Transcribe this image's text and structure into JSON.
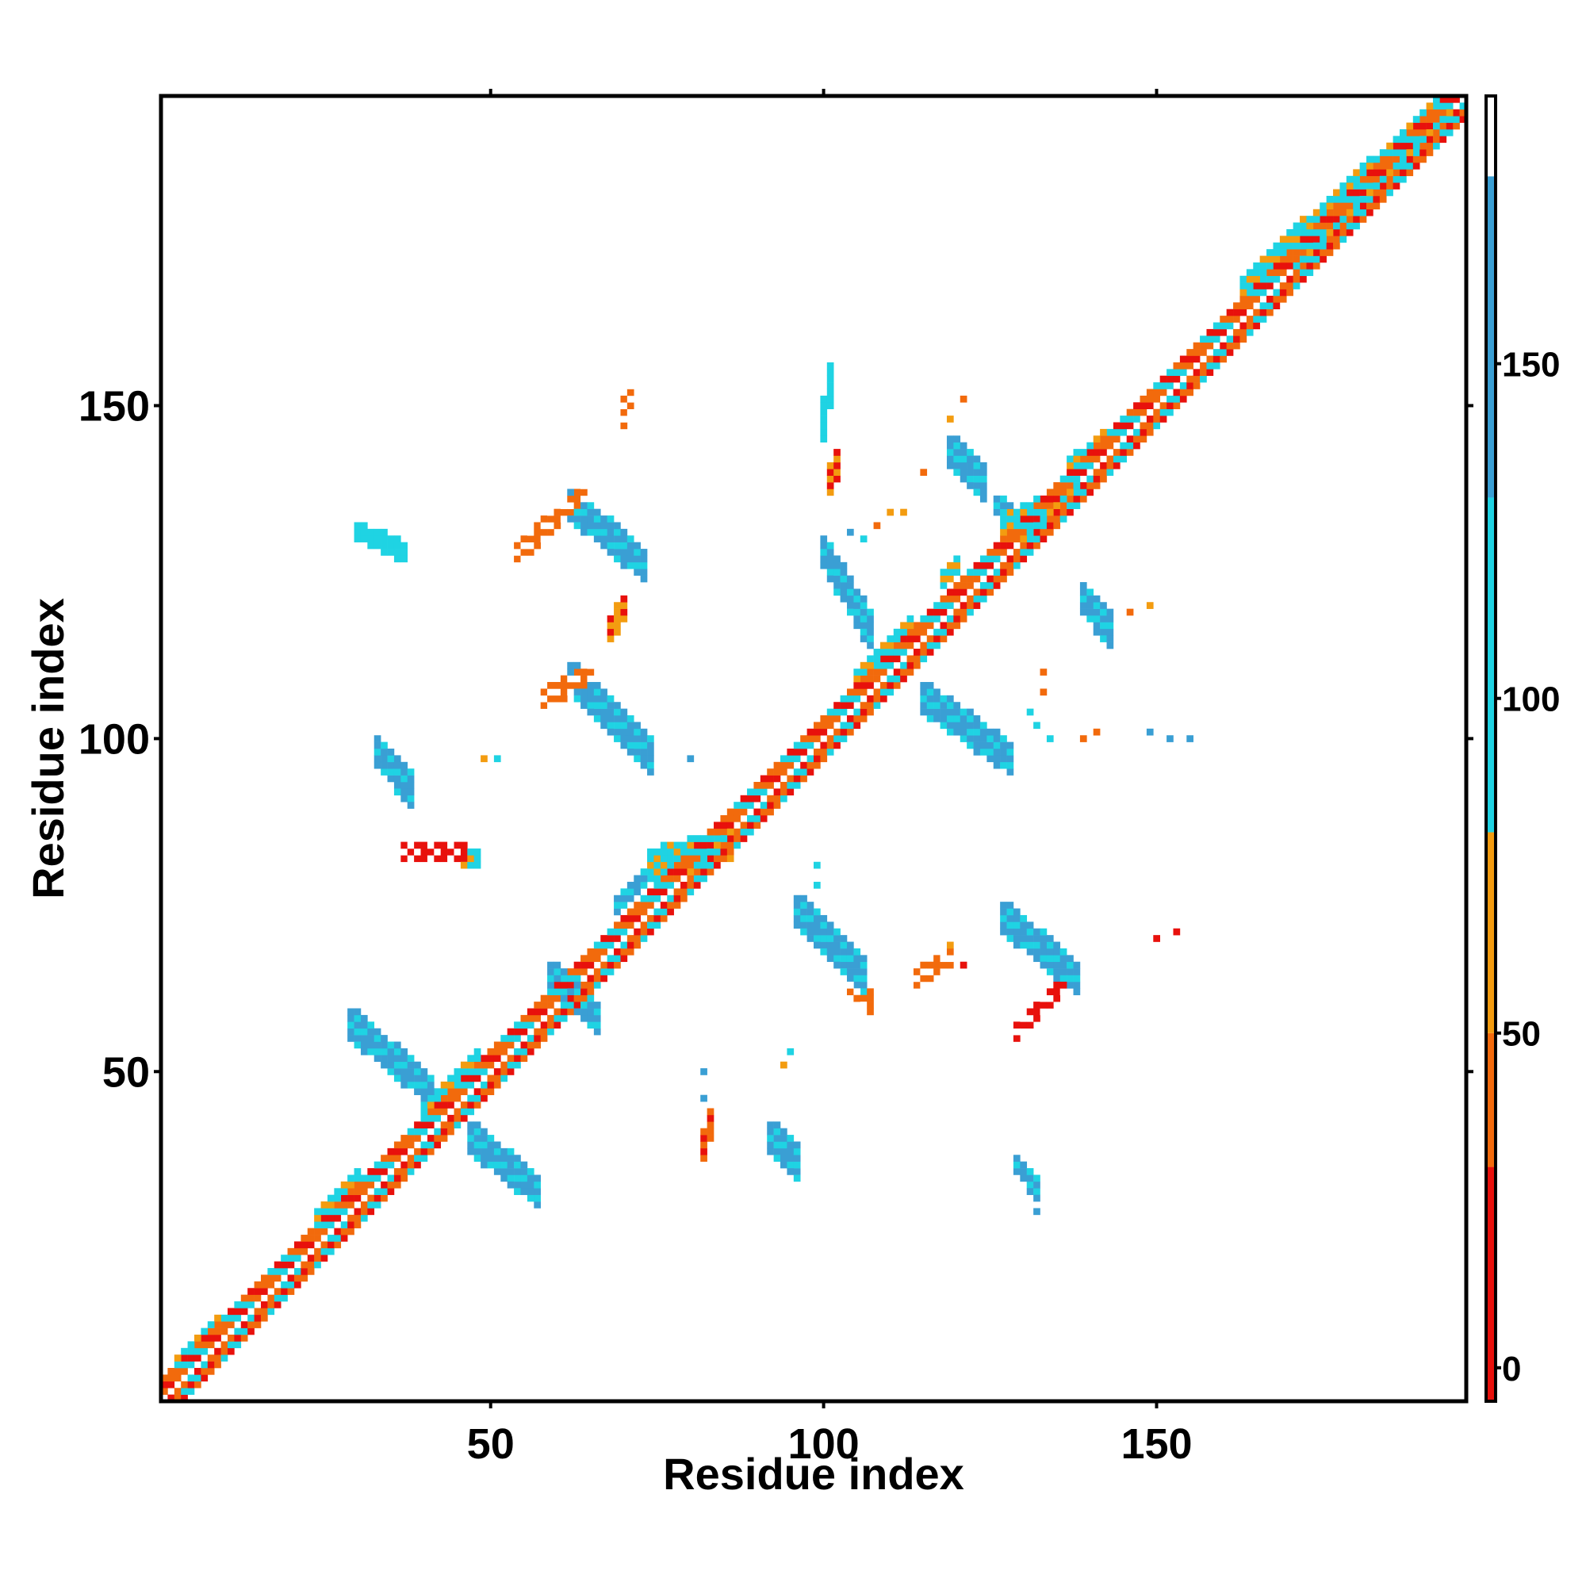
{
  "chart_data": {
    "type": "heatmap",
    "title": "",
    "xlabel": "Residue index",
    "ylabel": "Residue index",
    "xlim": [
      1,
      196
    ],
    "ylim": [
      1,
      196
    ],
    "x_ticks": [
      50,
      100,
      150
    ],
    "y_ticks": [
      50,
      100,
      150
    ],
    "x_tick_labels": [
      "50",
      "100",
      "150"
    ],
    "y_tick_labels": [
      "50",
      "100",
      "150"
    ],
    "grid": false,
    "legend": "colorbar-right",
    "colorbar": {
      "range": [
        -5,
        190
      ],
      "ticks": [
        0,
        50,
        100,
        150
      ],
      "tick_labels": [
        "0",
        "50",
        "100",
        "150"
      ],
      "bands": [
        {
          "from": -5,
          "to": 30,
          "color": "#e8110c"
        },
        {
          "from": 30,
          "to": 50,
          "color": "#f26a0c"
        },
        {
          "from": 50,
          "to": 80,
          "color": "#f39c10"
        },
        {
          "from": 80,
          "to": 130,
          "color": "#1fd3e3"
        },
        {
          "from": 130,
          "to": 178,
          "color": "#3a9fd4"
        },
        {
          "from": 178,
          "to": 190,
          "color": "#ffffff"
        }
      ]
    },
    "diagonal": {
      "from": 1,
      "to": 196
    },
    "segments": [
      {
        "x1": 3,
        "y1": 5,
        "x2": 9,
        "y2": 12,
        "value": 100,
        "width": 1
      },
      {
        "x1": 24,
        "y1": 28,
        "x2": 30,
        "y2": 34,
        "value": 100,
        "width": 1
      },
      {
        "x1": 40,
        "y1": 43,
        "x2": 48,
        "y2": 51,
        "value": 100,
        "width": 2
      },
      {
        "x1": 29,
        "y1": 57,
        "x2": 41,
        "y2": 47,
        "value": 140,
        "width": 2
      },
      {
        "x1": 47,
        "y1": 40,
        "x2": 57,
        "y2": 32,
        "value": 140,
        "width": 2
      },
      {
        "x1": 59,
        "y1": 64,
        "x2": 66,
        "y2": 58,
        "value": 140,
        "width": 2
      },
      {
        "x1": 74,
        "y1": 81,
        "x2": 86,
        "y2": 84,
        "value": 100,
        "width": 2
      },
      {
        "x1": 69,
        "y1": 75,
        "x2": 73,
        "y2": 79,
        "value": 140,
        "width": 1
      },
      {
        "x1": 105,
        "y1": 109,
        "x2": 113,
        "y2": 117,
        "value": 100,
        "width": 1
      },
      {
        "x1": 118,
        "y1": 124,
        "x2": 120,
        "y2": 126,
        "value": 100,
        "width": 1
      },
      {
        "x1": 127,
        "y1": 131,
        "x2": 138,
        "y2": 137,
        "value": 100,
        "width": 2
      },
      {
        "x1": 137,
        "y1": 141,
        "x2": 144,
        "y2": 146,
        "value": 100,
        "width": 1
      },
      {
        "x1": 163,
        "y1": 167,
        "x2": 172,
        "y2": 176,
        "value": 100,
        "width": 2
      },
      {
        "x1": 170,
        "y1": 173,
        "x2": 194,
        "y2": 196,
        "value": 100,
        "width": 2
      },
      {
        "x1": 33,
        "y1": 98,
        "x2": 38,
        "y2": 92,
        "value": 150,
        "width": 2
      },
      {
        "x1": 37,
        "y1": 83,
        "x2": 46,
        "y2": 83,
        "value": 20,
        "width": 1
      },
      {
        "x1": 42,
        "y1": 83,
        "x2": 48,
        "y2": 82,
        "value": 100,
        "width": 1
      },
      {
        "x1": 30,
        "y1": 131,
        "x2": 37,
        "y2": 128,
        "value": 120,
        "width": 1
      },
      {
        "x1": 54,
        "y1": 128,
        "x2": 64,
        "y2": 137,
        "value": 30,
        "width": 1
      },
      {
        "x1": 62,
        "y1": 135,
        "x2": 73,
        "y2": 126,
        "value": 130,
        "width": 2
      },
      {
        "x1": 58,
        "y1": 106,
        "x2": 65,
        "y2": 110,
        "value": 30,
        "width": 1
      },
      {
        "x1": 62,
        "y1": 109,
        "x2": 74,
        "y2": 97,
        "value": 150,
        "width": 2
      },
      {
        "x1": 68,
        "y1": 116,
        "x2": 70,
        "y2": 120,
        "value": 60,
        "width": 1
      },
      {
        "x1": 70,
        "y1": 148,
        "x2": 71,
        "y2": 152,
        "value": 30,
        "width": 1
      },
      {
        "x1": 100,
        "y1": 128,
        "x2": 107,
        "y2": 116,
        "value": 150,
        "width": 2
      },
      {
        "x1": 96,
        "y1": 74,
        "x2": 106,
        "y2": 64,
        "value": 150,
        "width": 2
      },
      {
        "x1": 104,
        "y1": 63,
        "x2": 107,
        "y2": 60,
        "value": 30,
        "width": 1
      },
      {
        "x1": 115,
        "y1": 106,
        "x2": 128,
        "y2": 97,
        "value": 150,
        "width": 2
      },
      {
        "x1": 119,
        "y1": 143,
        "x2": 124,
        "y2": 138,
        "value": 140,
        "width": 2
      },
      {
        "x1": 126,
        "y1": 135,
        "x2": 132,
        "y2": 130,
        "value": 140,
        "width": 1
      },
      {
        "x1": 139,
        "y1": 121,
        "x2": 143,
        "y2": 116,
        "value": 150,
        "width": 2
      },
      {
        "x1": 127,
        "y1": 73,
        "x2": 138,
        "y2": 64,
        "value": 140,
        "width": 2
      },
      {
        "x1": 129,
        "y1": 56,
        "x2": 136,
        "y2": 63,
        "value": 20,
        "width": 1
      },
      {
        "x1": 114,
        "y1": 64,
        "x2": 119,
        "y2": 67,
        "value": 30,
        "width": 1
      },
      {
        "x1": 92,
        "y1": 40,
        "x2": 96,
        "y2": 36,
        "value": 140,
        "width": 2
      },
      {
        "x1": 129,
        "y1": 36,
        "x2": 132,
        "y2": 32,
        "value": 140,
        "width": 1
      },
      {
        "x1": 82,
        "y1": 38,
        "x2": 83,
        "y2": 43,
        "value": 40,
        "width": 1
      },
      {
        "x1": 100,
        "y1": 146,
        "x2": 101,
        "y2": 155,
        "value": 120,
        "width": 1
      },
      {
        "x1": 101,
        "y1": 138,
        "x2": 102,
        "y2": 142,
        "value": 50,
        "width": 1
      }
    ],
    "points": [
      {
        "x": 49,
        "y": 97,
        "value": 60
      },
      {
        "x": 51,
        "y": 97,
        "value": 100
      },
      {
        "x": 80,
        "y": 97,
        "value": 150
      },
      {
        "x": 82,
        "y": 50,
        "value": 150
      },
      {
        "x": 82,
        "y": 46,
        "value": 150
      },
      {
        "x": 94,
        "y": 51,
        "value": 50
      },
      {
        "x": 95,
        "y": 53,
        "value": 100
      },
      {
        "x": 99,
        "y": 81,
        "value": 100
      },
      {
        "x": 99,
        "y": 78,
        "value": 100
      },
      {
        "x": 104,
        "y": 131,
        "value": 150
      },
      {
        "x": 106,
        "y": 130,
        "value": 100
      },
      {
        "x": 108,
        "y": 132,
        "value": 30
      },
      {
        "x": 110,
        "y": 134,
        "value": 60
      },
      {
        "x": 112,
        "y": 134,
        "value": 60
      },
      {
        "x": 115,
        "y": 140,
        "value": 40
      },
      {
        "x": 119,
        "y": 148,
        "value": 60
      },
      {
        "x": 121,
        "y": 151,
        "value": 40
      },
      {
        "x": 126,
        "y": 100,
        "value": 60
      },
      {
        "x": 131,
        "y": 104,
        "value": 100
      },
      {
        "x": 133,
        "y": 107,
        "value": 40
      },
      {
        "x": 133,
        "y": 110,
        "value": 40
      },
      {
        "x": 132,
        "y": 102,
        "value": 100
      },
      {
        "x": 134,
        "y": 100,
        "value": 100
      },
      {
        "x": 139,
        "y": 100,
        "value": 30
      },
      {
        "x": 141,
        "y": 101,
        "value": 40
      },
      {
        "x": 149,
        "y": 101,
        "value": 150
      },
      {
        "x": 152,
        "y": 100,
        "value": 150
      },
      {
        "x": 155,
        "y": 100,
        "value": 140
      },
      {
        "x": 143,
        "y": 115,
        "value": 60
      },
      {
        "x": 146,
        "y": 119,
        "value": 40
      },
      {
        "x": 149,
        "y": 120,
        "value": 60
      },
      {
        "x": 150,
        "y": 70,
        "value": 20
      },
      {
        "x": 153,
        "y": 71,
        "value": 20
      },
      {
        "x": 125,
        "y": 122,
        "value": 60
      },
      {
        "x": 120,
        "y": 127,
        "value": 100
      },
      {
        "x": 119,
        "y": 69,
        "value": 60
      },
      {
        "x": 121,
        "y": 66,
        "value": 20
      },
      {
        "x": 132,
        "y": 29,
        "value": 150
      }
    ]
  }
}
